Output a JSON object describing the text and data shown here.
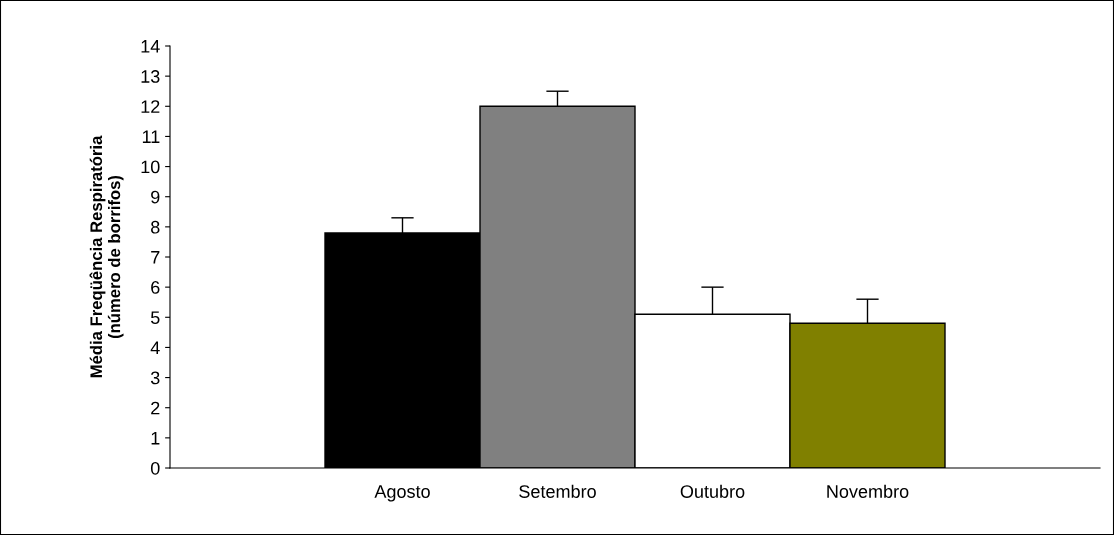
{
  "chart_data": {
    "type": "bar",
    "ylabel": "Média Freqüência Respiratória\n(número de borrifos)",
    "categories": [
      null,
      "Agosto",
      "Setembro",
      "Outubro",
      "Novembro",
      null
    ],
    "values": [
      null,
      7.8,
      12.0,
      5.1,
      4.8,
      null
    ],
    "colors": [
      "#000000",
      "#000000",
      "#808080",
      "#ffffff",
      "#808000",
      "#000000"
    ],
    "errors": [
      null,
      0.5,
      0.5,
      0.9,
      0.8,
      null
    ],
    "ylim": [
      0,
      14
    ],
    "yticks": [
      0,
      1,
      2,
      3,
      4,
      5,
      6,
      7,
      8,
      9,
      10,
      11,
      12,
      13,
      14
    ],
    "grid": false,
    "legend": false
  }
}
